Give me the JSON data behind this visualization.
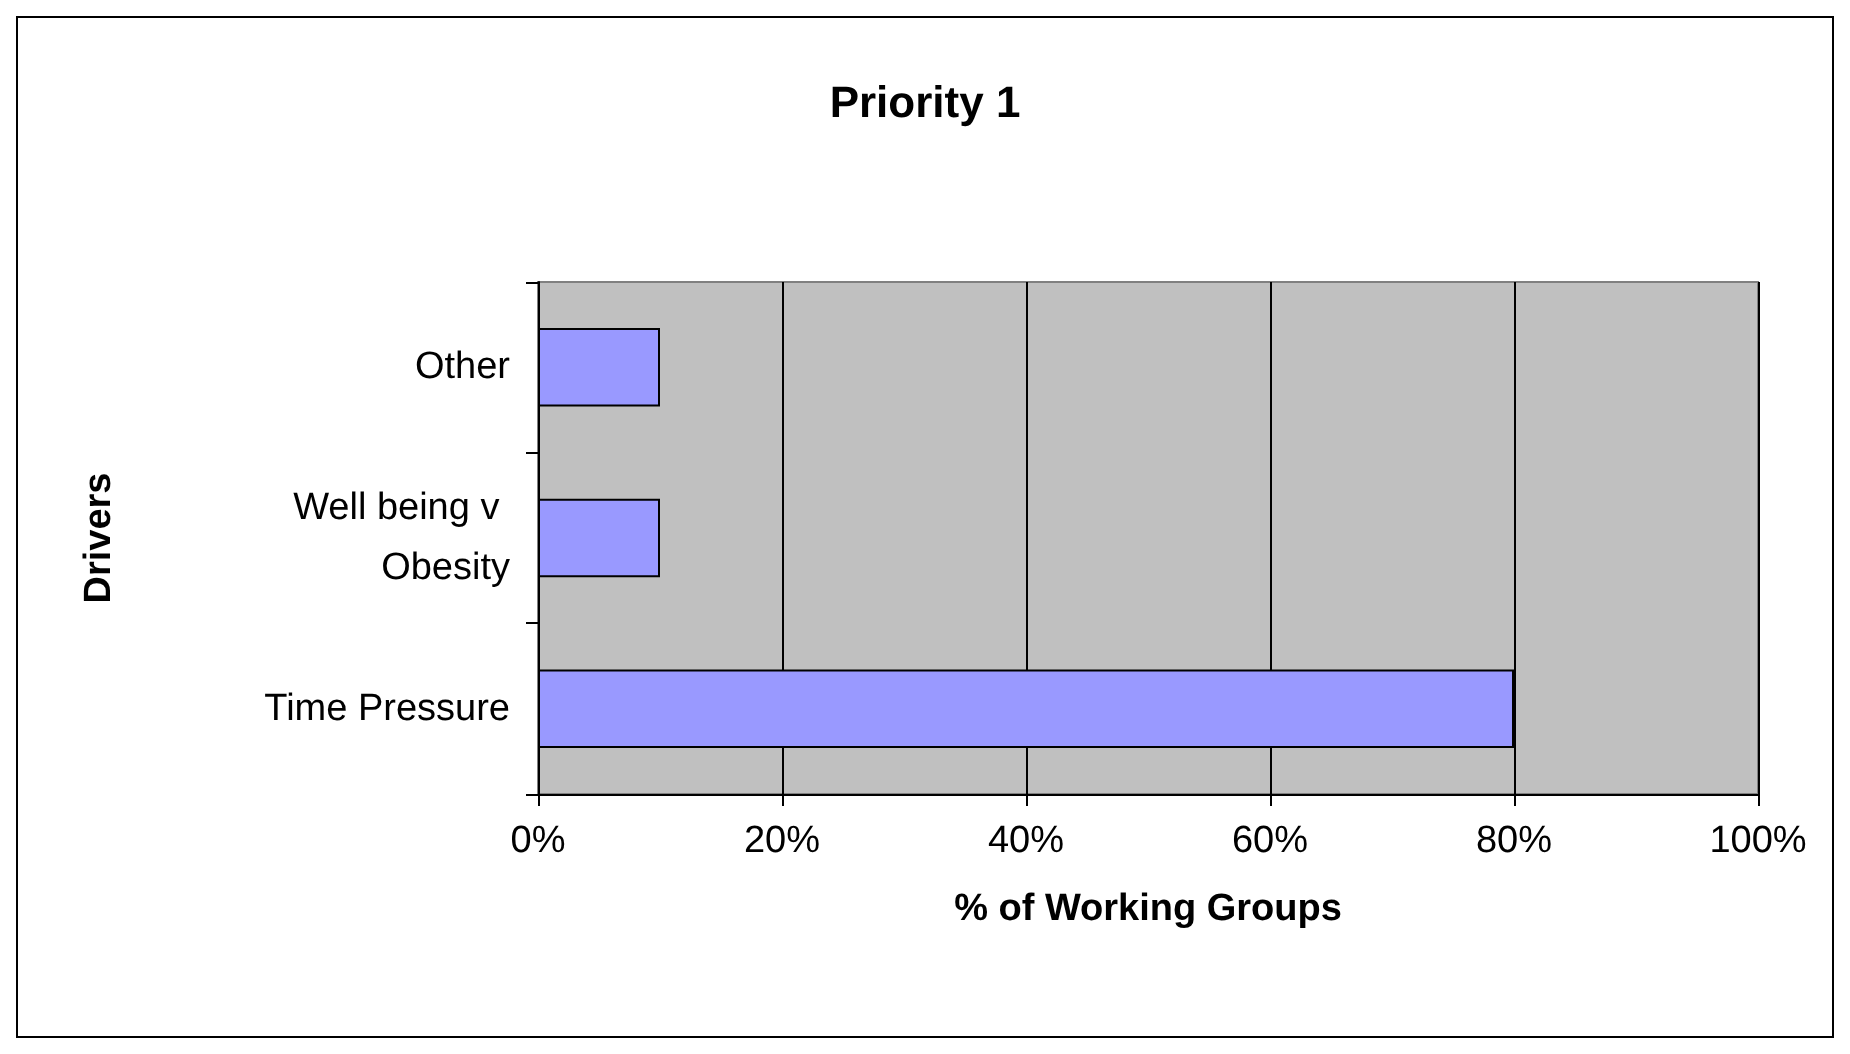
{
  "chart_data": {
    "type": "bar",
    "orientation": "horizontal",
    "title": "Priority 1",
    "xlabel": "% of Working Groups",
    "ylabel": "Drivers",
    "categories": [
      "Other",
      "Well being v Obesity",
      "Time Pressure"
    ],
    "values": [
      10,
      10,
      80
    ],
    "color": "#9999ff",
    "xlim": [
      0,
      100
    ],
    "xticks": [
      {
        "value": 0,
        "label": "0%"
      },
      {
        "value": 20,
        "label": "20%"
      },
      {
        "value": 40,
        "label": "40%"
      },
      {
        "value": 60,
        "label": "60%"
      },
      {
        "value": 80,
        "label": "80%"
      },
      {
        "value": 100,
        "label": "100%"
      }
    ],
    "grid": "x"
  }
}
